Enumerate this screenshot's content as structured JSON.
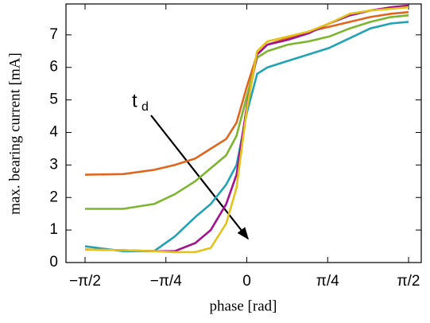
{
  "chart_data": {
    "type": "line",
    "x_label": "phase [rad]",
    "y_label": "max. bearing current [mA]",
    "annotation": {
      "text": "t",
      "subscript": "d"
    },
    "xlim": [
      -1.756,
      1.694
    ],
    "ylim": [
      0,
      7.95
    ],
    "xticks": [
      {
        "value": -1.5708,
        "label": "−π/2"
      },
      {
        "value": -0.7854,
        "label": "−π/4"
      },
      0,
      {
        "value": 0.7854,
        "label": "π/4"
      },
      {
        "value": 1.5708,
        "label": "π/2"
      }
    ],
    "yticks": [
      0,
      1,
      2,
      3,
      4,
      5,
      6,
      7
    ],
    "x": [
      -1.5708,
      -1.2,
      -0.9,
      -0.7,
      -0.5,
      -0.35,
      -0.2,
      -0.1,
      0,
      0.1,
      0.2,
      0.4,
      0.6,
      0.8,
      1.0,
      1.2,
      1.4,
      1.5708
    ],
    "series": [
      {
        "color": "#e0661e",
        "values": [
          2.7,
          2.72,
          2.85,
          3.0,
          3.2,
          3.5,
          3.8,
          4.3,
          5.4,
          6.4,
          6.7,
          6.9,
          7.1,
          7.25,
          7.4,
          7.55,
          7.65,
          7.7
        ]
      },
      {
        "color": "#7db52f",
        "values": [
          1.65,
          1.65,
          1.8,
          2.1,
          2.5,
          2.9,
          3.3,
          3.9,
          5.1,
          6.3,
          6.5,
          6.7,
          6.8,
          6.95,
          7.2,
          7.4,
          7.55,
          7.6
        ]
      },
      {
        "color": "#21a3b5",
        "values": [
          0.5,
          0.35,
          0.35,
          0.8,
          1.4,
          1.8,
          2.4,
          3.0,
          4.6,
          5.8,
          6.0,
          6.2,
          6.4,
          6.6,
          6.9,
          7.2,
          7.35,
          7.4
        ]
      },
      {
        "color": "#a3138f",
        "values": [
          0.4,
          0.38,
          0.35,
          0.35,
          0.6,
          1.0,
          1.8,
          2.7,
          4.8,
          6.4,
          6.7,
          6.85,
          7.05,
          7.35,
          7.6,
          7.75,
          7.85,
          7.9
        ]
      },
      {
        "color": "#e3c21a",
        "values": [
          0.4,
          0.38,
          0.35,
          0.32,
          0.32,
          0.45,
          1.2,
          2.3,
          4.7,
          6.5,
          6.8,
          6.95,
          7.1,
          7.35,
          7.65,
          7.75,
          7.8,
          7.85
        ]
      }
    ]
  }
}
